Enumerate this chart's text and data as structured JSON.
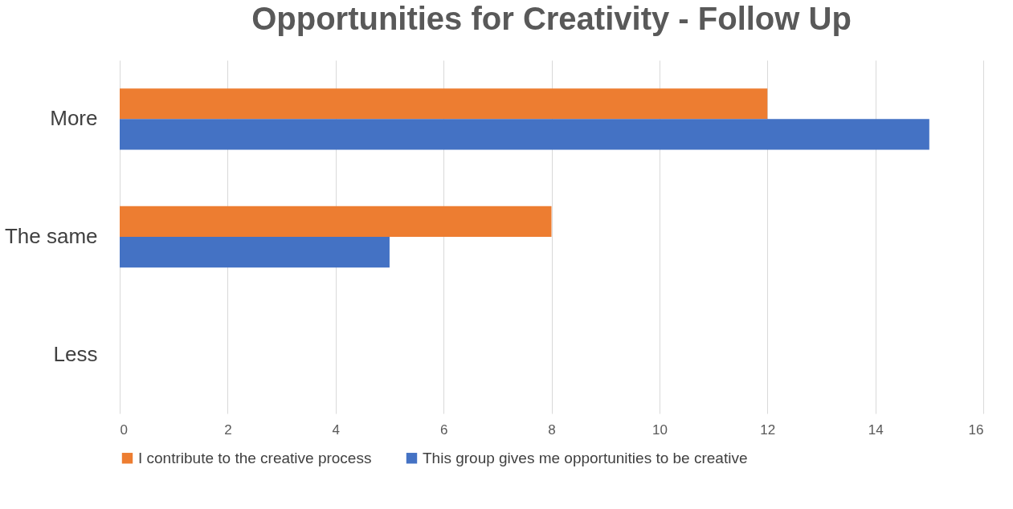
{
  "chart_data": {
    "type": "bar",
    "orientation": "horizontal",
    "title": "Opportunities for Creativity - Follow Up",
    "categories": [
      "More",
      "The same",
      "Less"
    ],
    "series": [
      {
        "name": "I contribute to the creative process",
        "color": "#ed7d31",
        "values": [
          12,
          8,
          0
        ]
      },
      {
        "name": "This group gives me opportunities to be creative",
        "color": "#4472c4",
        "values": [
          15,
          5,
          0
        ]
      }
    ],
    "xlim": [
      0,
      16
    ],
    "xticks": [
      0,
      2,
      4,
      6,
      8,
      10,
      12,
      14,
      16
    ],
    "grid": "x",
    "legend": "bottom"
  }
}
